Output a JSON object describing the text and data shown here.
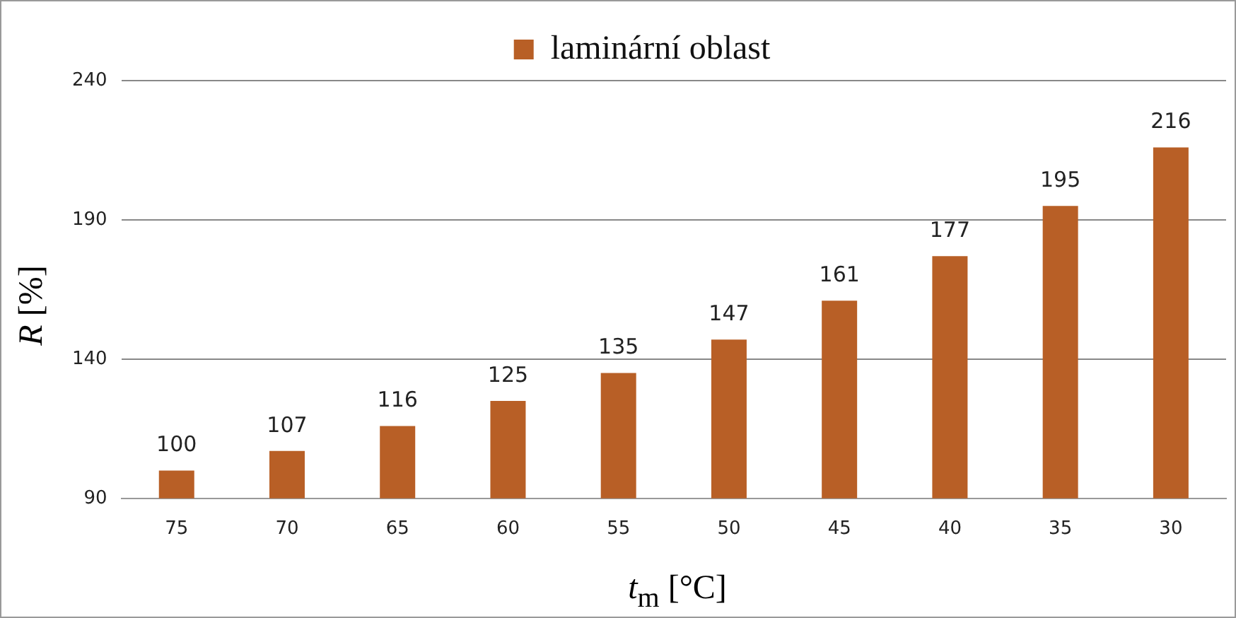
{
  "chart_data": {
    "type": "bar",
    "xlabel": "t$_{m}$ [°C]",
    "ylabel": "R [%]",
    "categories": [
      "75",
      "70",
      "65",
      "60",
      "55",
      "50",
      "45",
      "40",
      "35",
      "30"
    ],
    "series": [
      {
        "name": "laminární oblast",
        "color": "#b85f26",
        "values": [
          100,
          107,
          116,
          125,
          135,
          147,
          161,
          177,
          195,
          216
        ]
      }
    ],
    "ylim": [
      90,
      240
    ],
    "yticks": [
      90,
      140,
      190,
      240
    ],
    "grid": "y",
    "legend": "top",
    "data_labels": true
  }
}
